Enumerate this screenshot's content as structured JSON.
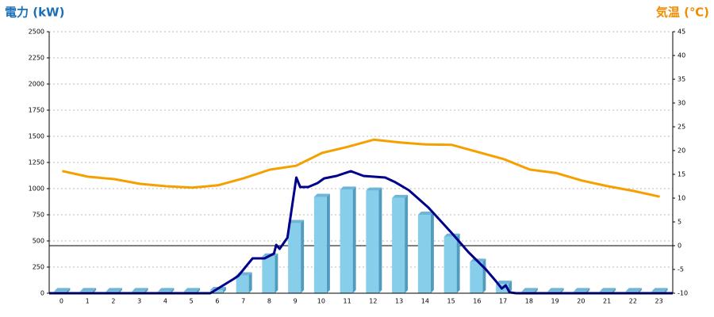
{
  "chart_data": {
    "type": "combo",
    "title": "電力 (kW)",
    "y2_title": "気温 (℃)",
    "categories": [
      "0",
      "1",
      "2",
      "3",
      "4",
      "5",
      "6",
      "7",
      "8",
      "9",
      "10",
      "11",
      "12",
      "13",
      "14",
      "15",
      "16",
      "17",
      "18",
      "19",
      "20",
      "21",
      "22",
      "23"
    ],
    "xlim": [
      -0.5,
      23.5
    ],
    "ylim": [
      0,
      2500
    ],
    "yticks": [
      0,
      250,
      500,
      750,
      1000,
      1250,
      1500,
      1750,
      2000,
      2250,
      2500
    ],
    "y2lim": [
      -10,
      45
    ],
    "y2ticks": [
      -10,
      -5,
      0,
      5,
      10,
      15,
      20,
      25,
      30,
      35,
      40,
      45
    ],
    "grid": true,
    "series": [
      {
        "type": "bar",
        "color": "#87ceeb",
        "values": [
          20,
          20,
          20,
          20,
          20,
          20,
          30,
          170,
          350,
          670,
          920,
          990,
          980,
          910,
          750,
          540,
          300,
          90,
          20,
          20,
          20,
          20,
          20,
          20
        ]
      },
      {
        "type": "line",
        "axis": "y2",
        "color": "#f5a000",
        "values": [
          15.7,
          14.5,
          14,
          13,
          12.5,
          12.2,
          12.7,
          14.2,
          16,
          16.8,
          19.5,
          20.8,
          22.3,
          21.7,
          21.3,
          21.2,
          19.7,
          18.2,
          16,
          15.3,
          13.7,
          12.5,
          11.5,
          10.3
        ]
      },
      {
        "type": "line",
        "color": "#00008b",
        "x": [
          -0.5,
          5.7,
          6.3,
          6.6,
          6.78,
          7.33,
          7.79,
          8.15,
          8.24,
          8.37,
          8.67,
          9.01,
          9.16,
          9.47,
          9.83,
          10.08,
          10.56,
          10.93,
          11.11,
          11.6,
          12.43,
          12.82,
          13.34,
          14.1,
          15.02,
          15.63,
          16.31,
          16.7,
          16.92,
          17.07,
          17.22,
          17.47,
          23.5
        ],
        "values": [
          0,
          0,
          91,
          136,
          167,
          333,
          333,
          379,
          462,
          424,
          530,
          1106,
          1015,
          1015,
          1053,
          1098,
          1121,
          1152,
          1167,
          1121,
          1106,
          1061,
          985,
          818,
          568,
          394,
          227,
          114,
          45,
          76,
          8,
          0,
          0
        ]
      }
    ]
  }
}
